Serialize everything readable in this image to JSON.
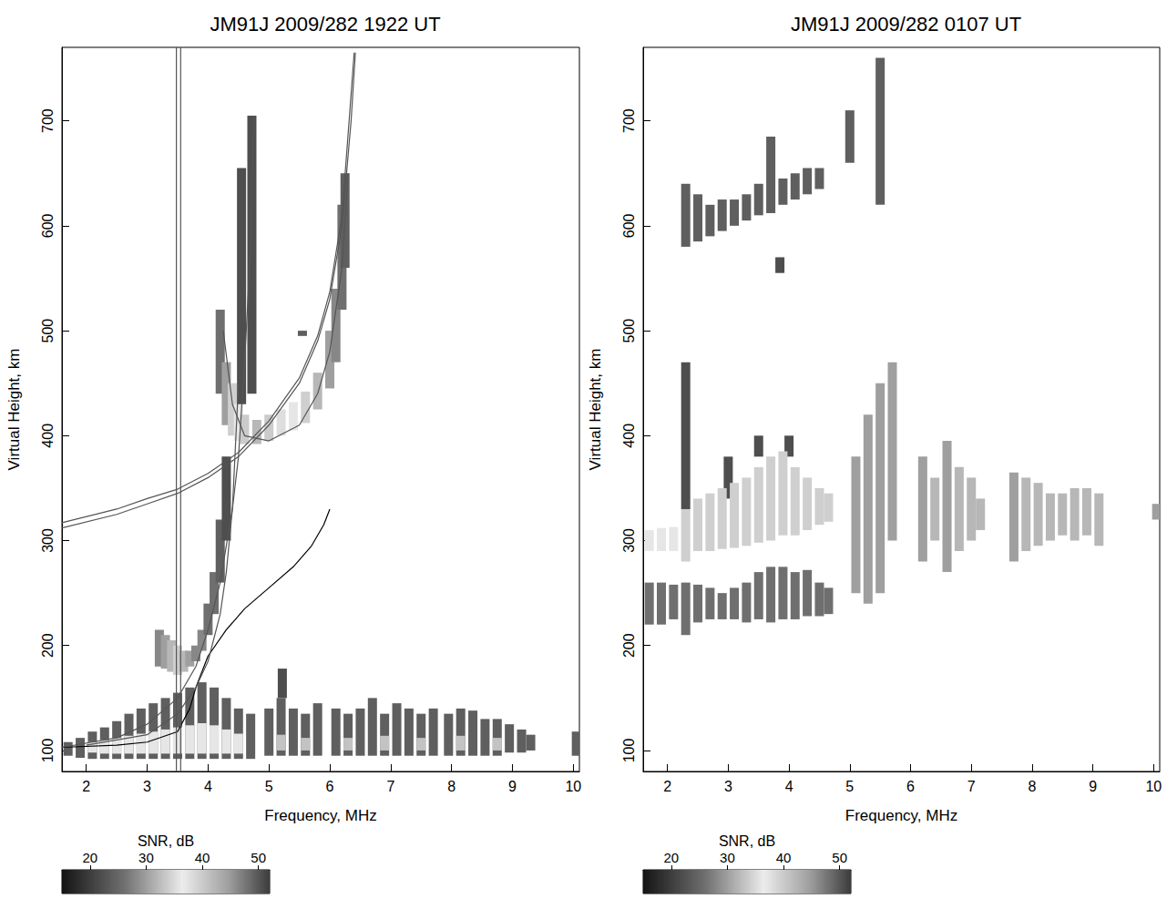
{
  "chart_data": [
    {
      "type": "scatter",
      "title": "JM91J 2009/282 1922 UT",
      "x_label": "Frequency, MHz",
      "y_label": "Virtual Height, km",
      "xlim": [
        1.6,
        10.1
      ],
      "xticks": [
        2,
        3,
        4,
        5,
        6,
        7,
        8,
        9,
        10
      ],
      "ylim": [
        80,
        770
      ],
      "yticks": [
        100,
        200,
        300,
        400,
        500,
        600,
        700
      ],
      "grid": false,
      "echoes": [
        [
          1.7,
          95,
          108,
          24
        ],
        [
          1.9,
          93,
          112,
          24
        ],
        [
          2.1,
          92,
          118,
          24
        ],
        [
          2.3,
          92,
          122,
          24
        ],
        [
          2.5,
          92,
          128,
          24
        ],
        [
          2.7,
          92,
          135,
          24
        ],
        [
          2.9,
          92,
          140,
          24
        ],
        [
          3.1,
          92,
          145,
          24
        ],
        [
          3.3,
          92,
          150,
          24
        ],
        [
          3.5,
          92,
          155,
          24
        ],
        [
          3.7,
          92,
          160,
          24
        ],
        [
          3.9,
          92,
          165,
          24
        ],
        [
          4.1,
          92,
          160,
          24
        ],
        [
          4.3,
          92,
          150,
          24
        ],
        [
          4.5,
          92,
          140,
          24
        ],
        [
          4.7,
          92,
          135,
          24
        ],
        [
          5.0,
          95,
          140,
          24
        ],
        [
          5.2,
          95,
          150,
          24
        ],
        [
          5.22,
          150,
          178,
          22
        ],
        [
          5.4,
          95,
          140,
          24
        ],
        [
          5.6,
          95,
          135,
          24
        ],
        [
          5.8,
          95,
          145,
          24
        ],
        [
          6.1,
          95,
          140,
          24
        ],
        [
          6.3,
          95,
          135,
          24
        ],
        [
          6.5,
          95,
          140,
          24
        ],
        [
          6.7,
          95,
          150,
          24
        ],
        [
          6.9,
          95,
          135,
          24
        ],
        [
          7.1,
          95,
          145,
          24
        ],
        [
          7.3,
          95,
          140,
          24
        ],
        [
          7.5,
          95,
          135,
          24
        ],
        [
          7.7,
          95,
          140,
          24
        ],
        [
          7.95,
          95,
          135,
          24
        ],
        [
          8.15,
          95,
          140,
          24
        ],
        [
          8.35,
          95,
          138,
          24
        ],
        [
          8.55,
          95,
          130,
          24
        ],
        [
          8.75,
          95,
          130,
          24
        ],
        [
          8.95,
          98,
          125,
          24
        ],
        [
          9.15,
          98,
          120,
          24
        ],
        [
          9.3,
          100,
          115,
          24
        ],
        [
          10.05,
          95,
          118,
          24
        ],
        [
          2.1,
          98,
          108,
          36
        ],
        [
          2.3,
          97,
          110,
          36
        ],
        [
          2.5,
          97,
          112,
          36
        ],
        [
          2.7,
          97,
          114,
          36
        ],
        [
          2.9,
          97,
          116,
          36
        ],
        [
          3.1,
          97,
          118,
          36
        ],
        [
          3.3,
          97,
          120,
          36
        ],
        [
          3.5,
          97,
          122,
          36
        ],
        [
          3.7,
          97,
          124,
          36
        ],
        [
          3.9,
          97,
          126,
          36
        ],
        [
          4.1,
          97,
          124,
          36
        ],
        [
          4.3,
          97,
          120,
          36
        ],
        [
          4.5,
          97,
          116,
          36
        ],
        [
          5.2,
          100,
          115,
          33
        ],
        [
          5.6,
          100,
          112,
          33
        ],
        [
          6.3,
          100,
          112,
          33
        ],
        [
          6.9,
          100,
          114,
          33
        ],
        [
          7.5,
          100,
          112,
          33
        ],
        [
          8.15,
          100,
          114,
          33
        ],
        [
          8.75,
          100,
          112,
          33
        ],
        [
          3.2,
          180,
          215,
          28
        ],
        [
          3.3,
          178,
          210,
          30
        ],
        [
          3.4,
          175,
          205,
          32
        ],
        [
          3.5,
          172,
          200,
          34
        ],
        [
          3.6,
          175,
          195,
          32
        ],
        [
          3.7,
          180,
          195,
          30
        ],
        [
          3.8,
          185,
          200,
          28
        ],
        [
          3.9,
          195,
          215,
          28
        ],
        [
          4.0,
          210,
          240,
          26
        ],
        [
          4.1,
          230,
          270,
          26
        ],
        [
          4.2,
          260,
          320,
          24
        ],
        [
          4.3,
          300,
          380,
          22
        ],
        [
          4.2,
          440,
          520,
          26
        ],
        [
          4.3,
          410,
          470,
          30
        ],
        [
          4.4,
          400,
          450,
          34
        ],
        [
          4.5,
          395,
          430,
          36
        ],
        [
          4.6,
          392,
          420,
          40
        ],
        [
          4.8,
          392,
          415,
          42
        ],
        [
          5.0,
          395,
          420,
          40
        ],
        [
          5.2,
          400,
          425,
          38
        ],
        [
          5.4,
          405,
          432,
          36
        ],
        [
          5.6,
          412,
          442,
          34
        ],
        [
          5.8,
          425,
          460,
          32
        ],
        [
          6.0,
          445,
          500,
          30
        ],
        [
          6.1,
          470,
          540,
          28
        ],
        [
          6.2,
          520,
          620,
          26
        ],
        [
          6.25,
          560,
          650,
          24
        ],
        [
          4.55,
          430,
          655,
          22
        ],
        [
          4.72,
          440,
          705,
          22
        ],
        [
          5.55,
          495,
          500,
          24
        ]
      ],
      "lines": [
        {
          "color": "#000000",
          "x": [
            1.6,
            2.5,
            3.0,
            3.5,
            3.7,
            3.8,
            4.0,
            4.3,
            4.6,
            5.0,
            5.4,
            5.7,
            5.9,
            6.0
          ],
          "y": [
            103,
            105,
            108,
            118,
            140,
            160,
            190,
            215,
            235,
            255,
            275,
            295,
            315,
            330
          ]
        },
        {
          "color": "#555555",
          "x": [
            1.6,
            2.5,
            3.0,
            3.5,
            4.0,
            4.5,
            5.0,
            5.5,
            5.8,
            6.0,
            6.2,
            6.35,
            6.42
          ],
          "y": [
            312,
            325,
            335,
            345,
            360,
            380,
            410,
            450,
            490,
            530,
            600,
            700,
            765
          ]
        },
        {
          "color": "#555555",
          "x": [
            1.6,
            2.5,
            3.0,
            3.5,
            4.0,
            4.5,
            5.0,
            5.5,
            5.8,
            6.0,
            6.2,
            6.33,
            6.4
          ],
          "y": [
            317,
            330,
            340,
            349,
            364,
            384,
            414,
            455,
            495,
            537,
            610,
            710,
            765
          ]
        },
        {
          "color": "#555555",
          "x": [
            1.6,
            2.5,
            3.0,
            3.5,
            3.8,
            4.0,
            4.2,
            4.4,
            4.5,
            4.6,
            4.7,
            4.75
          ],
          "y": [
            103,
            112,
            125,
            150,
            180,
            215,
            260,
            330,
            380,
            470,
            580,
            705
          ]
        },
        {
          "color": "#555555",
          "x": [
            2.0,
            3.0,
            3.5,
            3.8,
            4.0,
            4.2,
            4.3,
            4.4,
            4.5
          ],
          "y": [
            105,
            115,
            135,
            160,
            185,
            230,
            270,
            330,
            450
          ]
        },
        {
          "color": "#555555",
          "x": [
            4.25,
            4.4,
            4.6,
            5.0,
            5.5,
            5.8,
            6.0,
            6.2,
            6.3
          ],
          "y": [
            500,
            430,
            400,
            395,
            410,
            440,
            480,
            560,
            650
          ]
        },
        {
          "color": "#555555",
          "x": [
            3.48,
            3.48
          ],
          "y": [
            80,
            770
          ]
        },
        {
          "color": "#555555",
          "x": [
            3.55,
            3.55
          ],
          "y": [
            80,
            770
          ]
        }
      ],
      "colorbar": {
        "label": "SNR, dB",
        "range": [
          15,
          52
        ],
        "ticks": [
          20,
          30,
          40,
          50
        ]
      }
    },
    {
      "type": "scatter",
      "title": "JM91J 2009/282 0107 UT",
      "x_label": "Frequency, MHz",
      "y_label": "Virtual Height, km",
      "xlim": [
        1.6,
        10.1
      ],
      "xticks": [
        2,
        3,
        4,
        5,
        6,
        7,
        8,
        9,
        10
      ],
      "ylim": [
        80,
        770
      ],
      "yticks": [
        100,
        200,
        300,
        400,
        500,
        600,
        700
      ],
      "grid": false,
      "echoes": [
        [
          1.7,
          220,
          260,
          26
        ],
        [
          1.9,
          220,
          260,
          26
        ],
        [
          2.1,
          225,
          258,
          26
        ],
        [
          2.3,
          210,
          260,
          26
        ],
        [
          2.5,
          222,
          258,
          26
        ],
        [
          2.7,
          225,
          255,
          26
        ],
        [
          2.9,
          225,
          250,
          26
        ],
        [
          3.1,
          225,
          255,
          26
        ],
        [
          3.3,
          222,
          260,
          26
        ],
        [
          3.5,
          225,
          270,
          26
        ],
        [
          3.7,
          222,
          275,
          26
        ],
        [
          3.9,
          225,
          275,
          26
        ],
        [
          4.1,
          225,
          270,
          26
        ],
        [
          4.3,
          228,
          272,
          26
        ],
        [
          4.5,
          228,
          260,
          26
        ],
        [
          4.65,
          230,
          255,
          26
        ],
        [
          2.3,
          330,
          470,
          22
        ],
        [
          3.0,
          340,
          380,
          22
        ],
        [
          3.5,
          380,
          400,
          22
        ],
        [
          4.0,
          380,
          400,
          22
        ],
        [
          1.7,
          290,
          310,
          36
        ],
        [
          1.9,
          290,
          312,
          36
        ],
        [
          2.1,
          290,
          313,
          36
        ],
        [
          2.3,
          280,
          330,
          34
        ],
        [
          2.5,
          290,
          340,
          34
        ],
        [
          2.7,
          290,
          345,
          34
        ],
        [
          2.9,
          292,
          350,
          34
        ],
        [
          3.1,
          293,
          355,
          34
        ],
        [
          3.3,
          295,
          360,
          34
        ],
        [
          3.5,
          298,
          370,
          34
        ],
        [
          3.7,
          300,
          380,
          34
        ],
        [
          3.9,
          305,
          385,
          34
        ],
        [
          4.1,
          305,
          370,
          34
        ],
        [
          4.3,
          310,
          360,
          34
        ],
        [
          4.5,
          315,
          350,
          34
        ],
        [
          4.65,
          318,
          345,
          34
        ],
        [
          5.1,
          250,
          380,
          30
        ],
        [
          5.3,
          240,
          420,
          30
        ],
        [
          5.5,
          250,
          450,
          30
        ],
        [
          5.7,
          300,
          470,
          30
        ],
        [
          6.2,
          280,
          380,
          30
        ],
        [
          6.4,
          300,
          360,
          32
        ],
        [
          6.6,
          270,
          395,
          30
        ],
        [
          6.8,
          290,
          370,
          32
        ],
        [
          7.0,
          300,
          360,
          32
        ],
        [
          7.15,
          310,
          340,
          32
        ],
        [
          7.7,
          280,
          365,
          30
        ],
        [
          7.9,
          290,
          360,
          32
        ],
        [
          8.1,
          295,
          355,
          32
        ],
        [
          8.3,
          300,
          345,
          32
        ],
        [
          8.5,
          305,
          345,
          32
        ],
        [
          8.7,
          300,
          350,
          32
        ],
        [
          8.9,
          305,
          350,
          32
        ],
        [
          9.1,
          295,
          345,
          32
        ],
        [
          10.05,
          320,
          335,
          30
        ],
        [
          2.3,
          580,
          640,
          24
        ],
        [
          2.5,
          585,
          630,
          24
        ],
        [
          2.7,
          590,
          620,
          24
        ],
        [
          2.9,
          595,
          625,
          24
        ],
        [
          3.1,
          600,
          625,
          24
        ],
        [
          3.3,
          605,
          630,
          24
        ],
        [
          3.5,
          610,
          640,
          24
        ],
        [
          3.7,
          612,
          685,
          24
        ],
        [
          3.85,
          555,
          570,
          22
        ],
        [
          3.9,
          620,
          645,
          24
        ],
        [
          4.1,
          625,
          650,
          24
        ],
        [
          4.3,
          630,
          655,
          24
        ],
        [
          4.5,
          635,
          655,
          24
        ],
        [
          5.0,
          660,
          710,
          24
        ],
        [
          5.5,
          620,
          760,
          24
        ]
      ],
      "colorbar": {
        "label": "SNR, dB",
        "range": [
          15,
          52
        ],
        "ticks": [
          20,
          30,
          40,
          50
        ]
      }
    }
  ]
}
